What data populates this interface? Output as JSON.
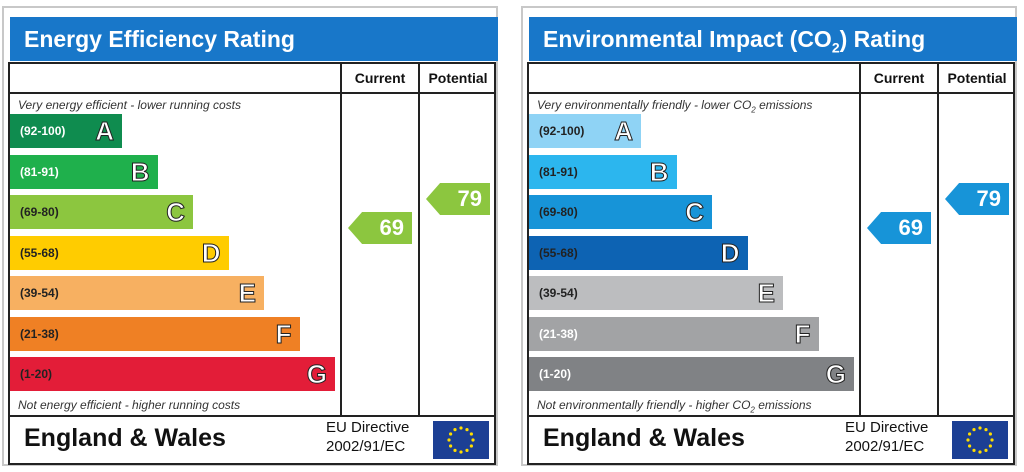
{
  "panels": [
    {
      "title": "Energy Efficiency Rating",
      "current_label": "Current",
      "potential_label": "Potential",
      "top_note": "Very energy efficient - lower running costs",
      "bottom_note": "Not energy efficient - higher running costs",
      "bands": [
        {
          "range": "(92-100)",
          "letter": "A",
          "color": "#0f8c4f",
          "range_color": "#ffffff"
        },
        {
          "range": "(81-91)",
          "letter": "B",
          "color": "#1fb04c",
          "range_color": "#ffffff"
        },
        {
          "range": "(69-80)",
          "letter": "C",
          "color": "#8cc63f",
          "range_color": "#222222"
        },
        {
          "range": "(55-68)",
          "letter": "D",
          "color": "#ffcc00",
          "range_color": "#222222"
        },
        {
          "range": "(39-54)",
          "letter": "E",
          "color": "#f7b061",
          "range_color": "#222222"
        },
        {
          "range": "(21-38)",
          "letter": "F",
          "color": "#ef8024",
          "range_color": "#222222"
        },
        {
          "range": "(1-20)",
          "letter": "G",
          "color": "#e31d38",
          "range_color": "#222222"
        }
      ],
      "current": {
        "value": "69",
        "band": "C",
        "color": "#8cc63f"
      },
      "potential": {
        "value": "79",
        "band": "C",
        "color": "#8cc63f"
      },
      "region": "England & Wales",
      "directive_line1": "EU Directive",
      "directive_line2": "2002/91/EC"
    },
    {
      "title_main": "Environmental Impact (CO",
      "title_sub": "2",
      "title_end": ") Rating",
      "current_label": "Current",
      "potential_label": "Potential",
      "top_note_main": "Very environmentally friendly - lower CO",
      "top_note_sub": "2",
      "top_note_end": " emissions",
      "bottom_note_main": "Not environmentally friendly - higher CO",
      "bottom_note_sub": "2",
      "bottom_note_end": " emissions",
      "bands": [
        {
          "range": "(92-100)",
          "letter": "A",
          "color": "#8fd3f5",
          "range_color": "#222222"
        },
        {
          "range": "(81-91)",
          "letter": "B",
          "color": "#2cb6ee",
          "range_color": "#222222"
        },
        {
          "range": "(69-80)",
          "letter": "C",
          "color": "#1794d8",
          "range_color": "#222222"
        },
        {
          "range": "(55-68)",
          "letter": "D",
          "color": "#0d63b3",
          "range_color": "#222222"
        },
        {
          "range": "(39-54)",
          "letter": "E",
          "color": "#bcbdbf",
          "range_color": "#222222"
        },
        {
          "range": "(21-38)",
          "letter": "F",
          "color": "#a2a3a5",
          "range_color": "#ffffff"
        },
        {
          "range": "(1-20)",
          "letter": "G",
          "color": "#808285",
          "range_color": "#ffffff"
        }
      ],
      "current": {
        "value": "69",
        "band": "C",
        "color": "#1794d8"
      },
      "potential": {
        "value": "79",
        "band": "C",
        "color": "#1794d8"
      },
      "region": "England & Wales",
      "directive_line1": "EU Directive",
      "directive_line2": "2002/91/EC"
    }
  ]
}
